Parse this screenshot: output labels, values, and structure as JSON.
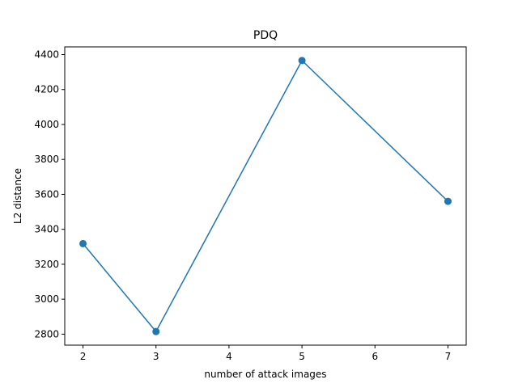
{
  "chart_data": {
    "type": "line",
    "title": "PDQ",
    "xlabel": "number of attack images",
    "ylabel": "L2 distance",
    "x": [
      2,
      3,
      5,
      7
    ],
    "series": [
      {
        "values": [
          3318,
          2815,
          4366,
          3560
        ],
        "color": "#1f77b4"
      }
    ],
    "xlim": [
      1.75,
      7.25
    ],
    "ylim": [
      2737,
      4444
    ],
    "xticks": [
      2,
      3,
      4,
      5,
      6,
      7
    ],
    "yticks": [
      2800,
      3000,
      3200,
      3400,
      3600,
      3800,
      4000,
      4200,
      4400
    ],
    "grid": false,
    "marker": "circle"
  }
}
